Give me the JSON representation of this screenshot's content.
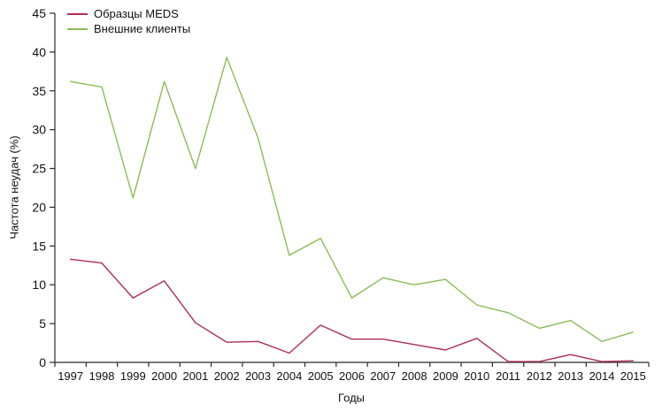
{
  "chart_data": {
    "type": "line",
    "title": "",
    "xlabel": "Годы",
    "ylabel": "Частота неудач (%)",
    "x": [
      1997,
      1998,
      1999,
      2000,
      2001,
      2002,
      2003,
      2004,
      2005,
      2006,
      2007,
      2008,
      2009,
      2010,
      2011,
      2012,
      2013,
      2014,
      2015
    ],
    "series": [
      {
        "name": "Образцы MEDS",
        "color": "#b02d56",
        "values": [
          13.3,
          12.8,
          8.3,
          10.5,
          5.1,
          2.6,
          2.7,
          1.2,
          4.8,
          3.0,
          3.0,
          2.3,
          1.6,
          3.1,
          0.1,
          0.1,
          1.0,
          0.1,
          0.2
        ]
      },
      {
        "name": "Внешние клиенты",
        "color": "#8abd54",
        "values": [
          36.2,
          35.5,
          21.2,
          36.2,
          25.0,
          39.3,
          28.9,
          13.8,
          16.0,
          8.3,
          10.9,
          10.0,
          10.7,
          7.4,
          6.4,
          4.4,
          5.4,
          2.7,
          3.9
        ]
      }
    ],
    "ylim": [
      0,
      45
    ],
    "ytick_step": 5,
    "grid": "off",
    "legend_position": "top-left",
    "axis_color": "#2b2b2b",
    "text_color": "#111111"
  }
}
